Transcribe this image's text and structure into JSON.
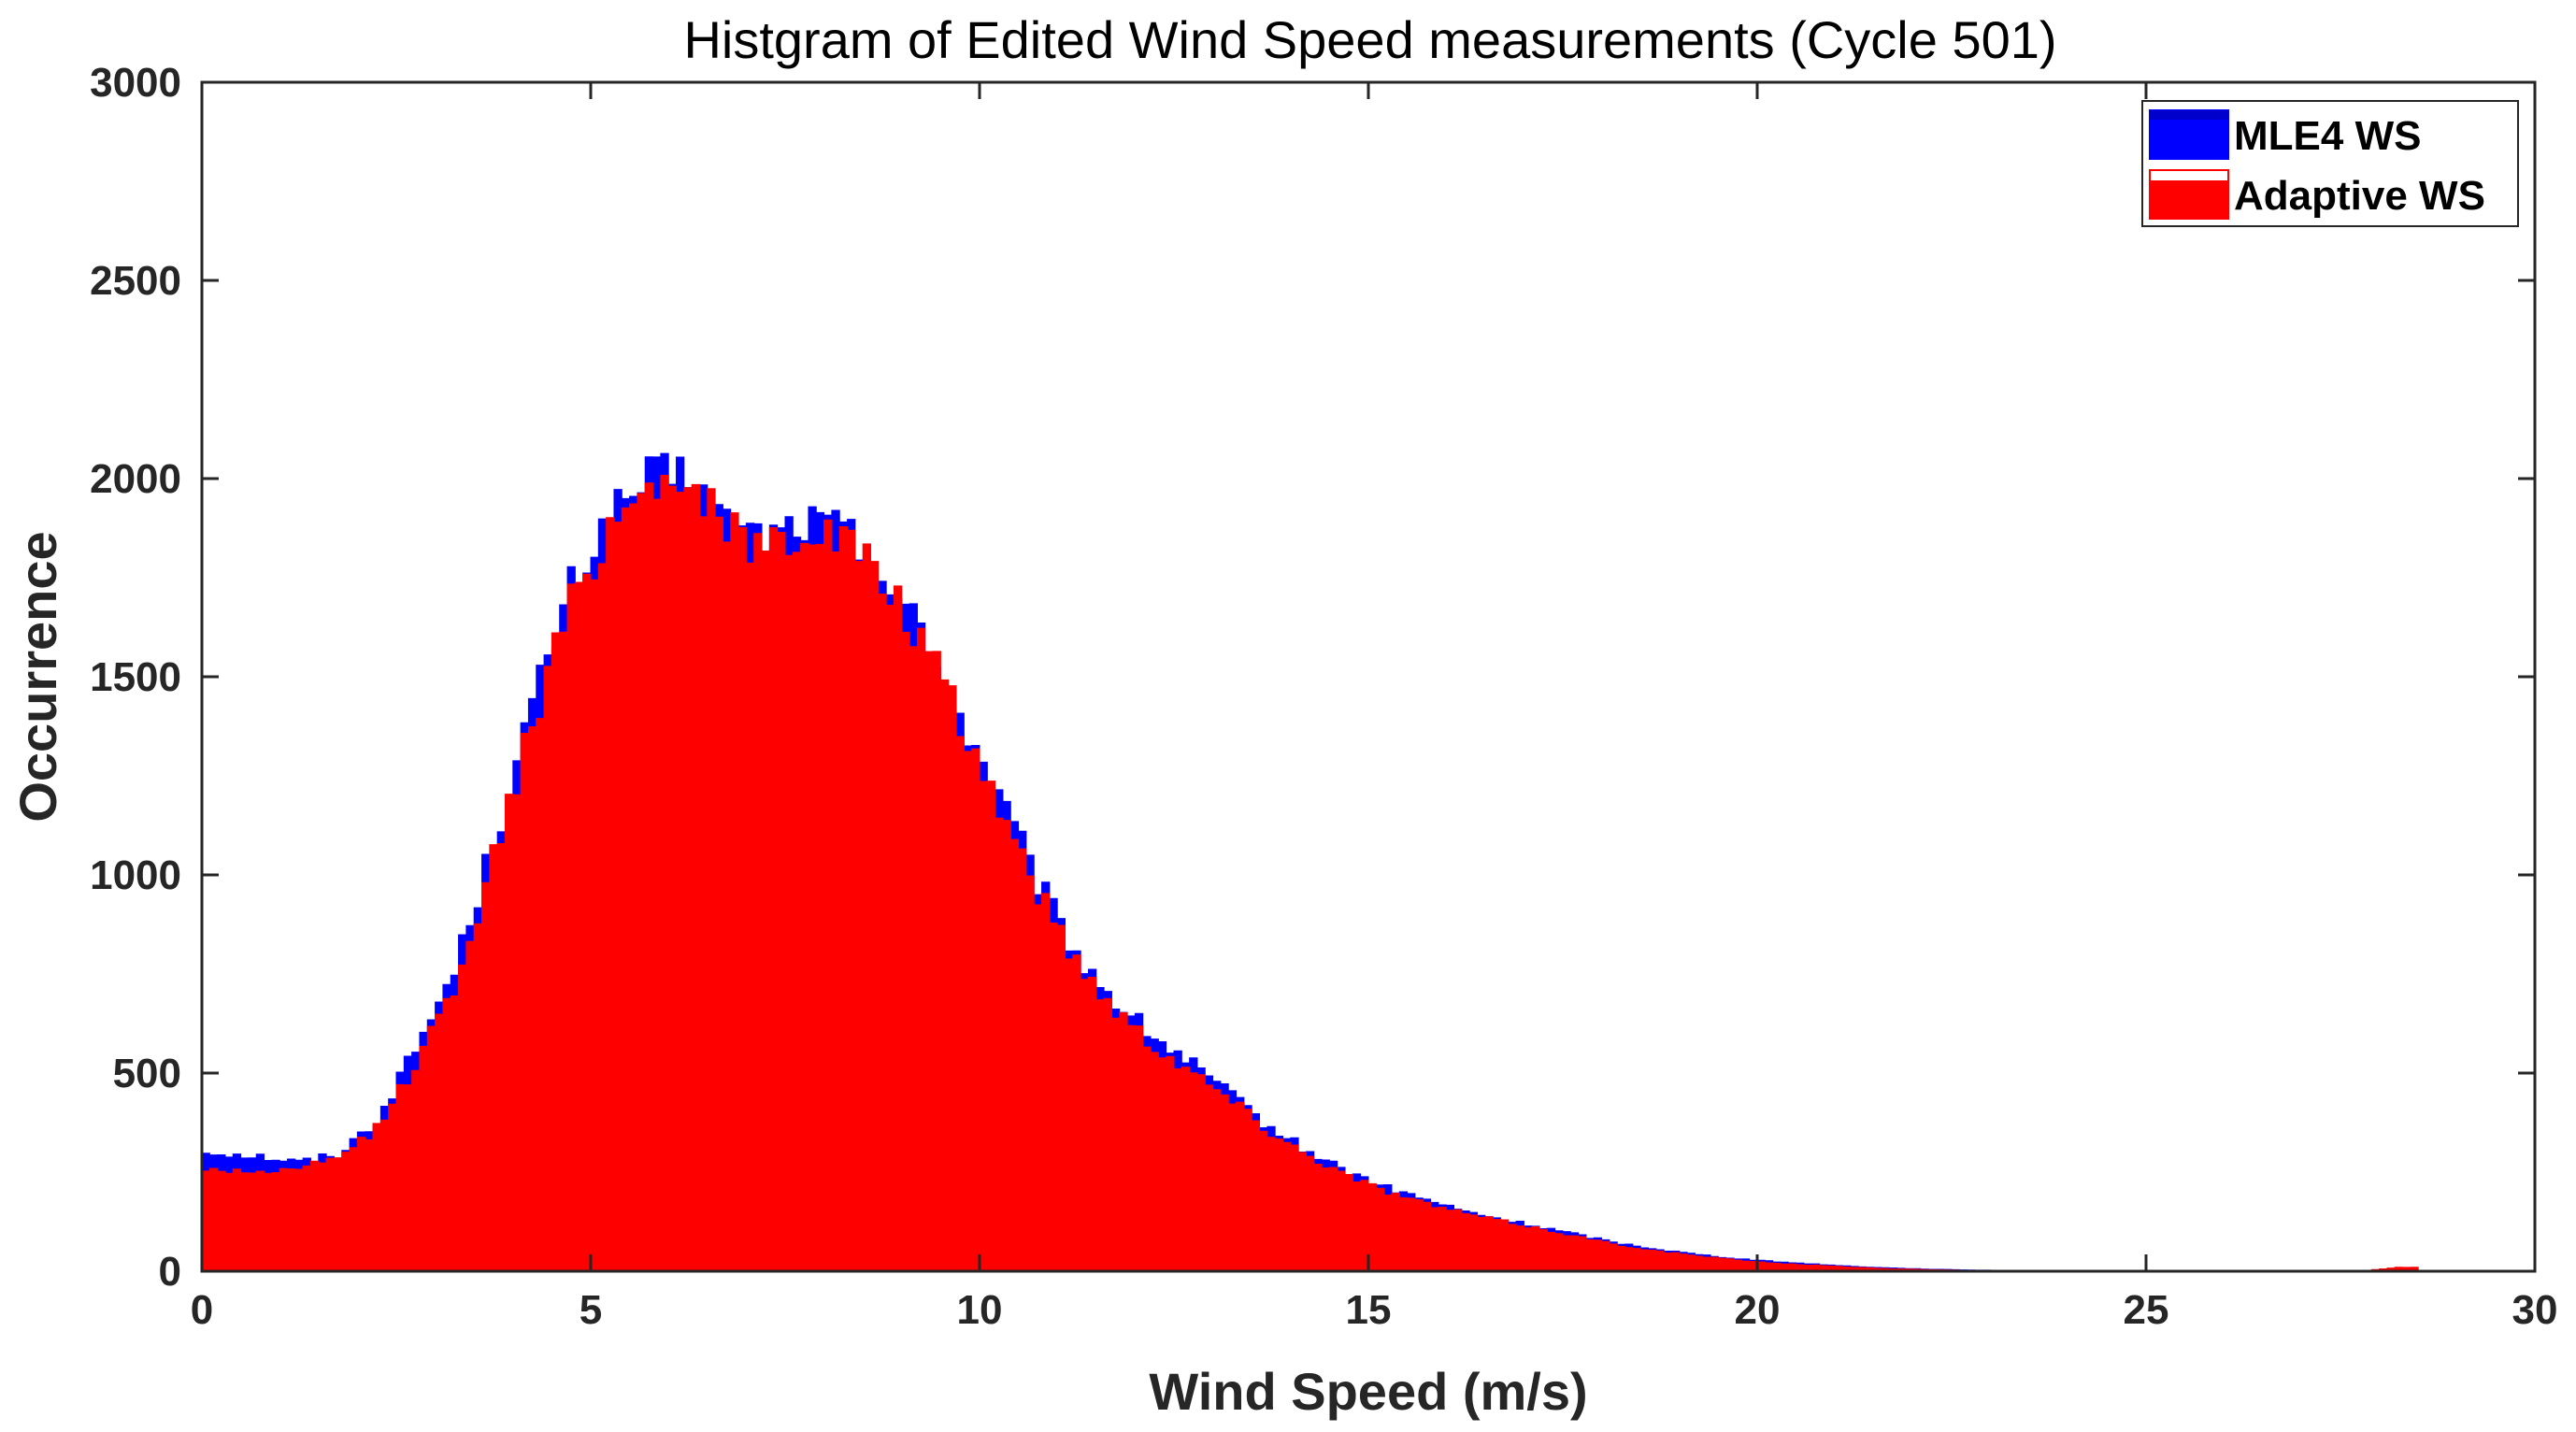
{
  "chart_data": {
    "type": "bar",
    "title": "Histgram of Edited Wind Speed measurements (Cycle 501)",
    "xlabel": "Wind Speed (m/s)",
    "ylabel": "Occurrence",
    "xlim": [
      0,
      30
    ],
    "ylim": [
      0,
      3000
    ],
    "xticks": [
      "0",
      "5",
      "10",
      "15",
      "20",
      "25",
      "30"
    ],
    "yticks": [
      "0",
      "500",
      "1000",
      "1500",
      "2000",
      "2500",
      "3000"
    ],
    "grid": false,
    "legend_position": "top-right",
    "bin_width": 0.1,
    "series": [
      {
        "name": "MLE4 WS",
        "color": "#0000FF",
        "x": [
          0.25,
          0.75,
          1.25,
          1.75,
          2.25,
          2.75,
          3.25,
          3.75,
          4.25,
          4.75,
          5.25,
          5.75,
          6.25,
          6.75,
          7.25,
          7.75,
          8.25,
          8.75,
          9.25,
          9.75,
          10.25,
          10.75,
          11.25,
          11.75,
          12.25,
          12.75,
          13.25,
          13.75,
          14.25,
          14.75,
          15.25,
          15.75,
          16.25,
          16.75,
          17.25,
          17.75,
          18.25,
          18.75,
          19.25,
          19.75,
          20.25,
          20.75,
          21.25,
          21.75,
          22.25,
          22.75,
          23.25,
          23.75,
          24.25,
          24.75,
          25.25,
          25.75,
          26.25,
          26.75,
          27.25,
          27.75,
          28.25
        ],
        "values": [
          300,
          290,
          275,
          295,
          380,
          560,
          760,
          1080,
          1420,
          1720,
          1900,
          2000,
          2010,
          1880,
          1850,
          1890,
          1870,
          1760,
          1610,
          1400,
          1200,
          980,
          800,
          680,
          590,
          520,
          440,
          360,
          300,
          250,
          210,
          180,
          150,
          130,
          110,
          90,
          70,
          55,
          42,
          32,
          24,
          18,
          12,
          8,
          5,
          3,
          2,
          1,
          1,
          0,
          0,
          0,
          0,
          0,
          0,
          0,
          0
        ]
      },
      {
        "name": "Adaptive WS",
        "color": "#FF0000",
        "x": [
          0.25,
          0.75,
          1.25,
          1.75,
          2.25,
          2.75,
          3.25,
          3.75,
          4.25,
          4.75,
          5.25,
          5.75,
          6.25,
          6.75,
          7.25,
          7.75,
          8.25,
          8.75,
          9.25,
          9.75,
          10.25,
          10.75,
          11.25,
          11.75,
          12.25,
          12.75,
          13.25,
          13.75,
          14.25,
          14.75,
          15.25,
          15.75,
          16.25,
          16.75,
          17.25,
          17.75,
          18.25,
          18.75,
          19.25,
          19.75,
          20.25,
          20.75,
          21.25,
          21.75,
          22.25,
          22.75,
          23.25,
          23.75,
          24.25,
          24.75,
          25.25,
          25.75,
          26.25,
          26.75,
          27.25,
          27.75,
          28.25
        ],
        "values": [
          255,
          250,
          255,
          285,
          360,
          520,
          720,
          1040,
          1380,
          1680,
          1880,
          1990,
          2000,
          1870,
          1830,
          1870,
          1850,
          1740,
          1590,
          1380,
          1180,
          960,
          780,
          660,
          570,
          500,
          430,
          350,
          290,
          240,
          200,
          170,
          145,
          125,
          105,
          85,
          65,
          50,
          38,
          28,
          20,
          15,
          10,
          6,
          4,
          2,
          1,
          1,
          1,
          0,
          0,
          0,
          0,
          0,
          0,
          0,
          10
        ]
      }
    ]
  }
}
